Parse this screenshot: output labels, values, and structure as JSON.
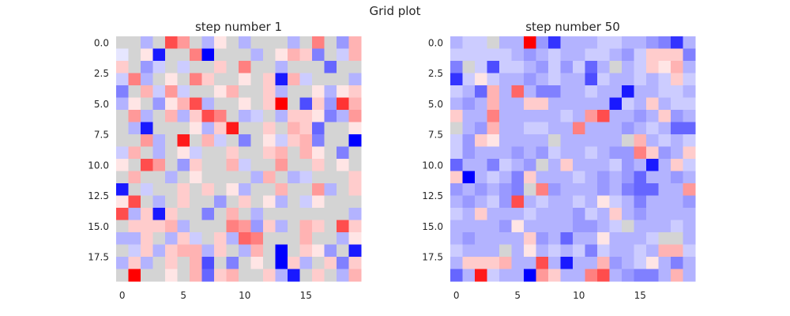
{
  "figure": {
    "title": "Grid plot"
  },
  "chart_data": [
    {
      "type": "heatmap",
      "title": "step number 1",
      "n_rows": 20,
      "n_cols": 20,
      "xticks": [
        0,
        5,
        10,
        15
      ],
      "yticks": [
        0.0,
        2.5,
        5.0,
        7.5,
        10.0,
        12.5,
        15.0,
        17.5
      ],
      "xtick_labels": [
        "0",
        "5",
        "10",
        "15"
      ],
      "ytick_labels": [
        "0.0",
        "2.5",
        "5.0",
        "7.5",
        "10.0",
        "12.5",
        "15.0",
        "17.5"
      ],
      "colormap": "bwr",
      "vmin": -1,
      "vmax": 1,
      "cells": [
        [
          0.0,
          0.0,
          -0.3,
          0.0,
          0.7,
          0.4,
          0.0,
          -0.3,
          0.1,
          0.0,
          -0.3,
          0.0,
          0.0,
          0.0,
          -0.3,
          0.0,
          0.5,
          0.0,
          -0.4,
          0.3
        ],
        [
          -0.1,
          0.0,
          0.1,
          -0.9,
          0.0,
          0.0,
          0.5,
          -1.0,
          0.0,
          0.0,
          0.0,
          -0.3,
          0.0,
          0.1,
          0.3,
          0.2,
          -0.5,
          0.0,
          -0.2,
          0.3
        ],
        [
          0.2,
          0.0,
          -0.4,
          -0.2,
          0.0,
          -0.2,
          0.0,
          0.0,
          0.2,
          0.0,
          0.5,
          0.0,
          0.0,
          -0.3,
          0.0,
          0.0,
          0.0,
          -0.6,
          0.0,
          0.0
        ],
        [
          -0.2,
          0.5,
          -0.3,
          0.0,
          0.1,
          0.0,
          0.5,
          0.2,
          0.0,
          0.0,
          0.1,
          0.0,
          0.2,
          -0.9,
          0.3,
          -0.2,
          0.0,
          0.0,
          0.0,
          -0.3
        ],
        [
          -0.5,
          0.0,
          0.3,
          -0.2,
          0.4,
          -0.2,
          0.0,
          0.0,
          0.1,
          0.3,
          0.0,
          0.0,
          0.2,
          -0.3,
          0.0,
          0.0,
          0.1,
          -0.3,
          0.1,
          0.2
        ],
        [
          -0.3,
          0.1,
          0.0,
          -0.4,
          0.1,
          0.3,
          0.7,
          -0.3,
          0.0,
          0.0,
          0.1,
          0.0,
          0.2,
          1.0,
          0.0,
          -0.7,
          0.2,
          -0.4,
          0.8,
          0.3
        ],
        [
          0.0,
          0.4,
          -0.3,
          0.0,
          0.3,
          -0.3,
          0.2,
          0.7,
          0.5,
          0.0,
          -0.3,
          -0.2,
          0.0,
          -0.3,
          0.2,
          0.2,
          0.1,
          -0.5,
          -0.3,
          0.4
        ],
        [
          0.0,
          -0.3,
          -0.9,
          0.0,
          0.0,
          0.0,
          0.1,
          -0.3,
          0.2,
          0.9,
          0.0,
          0.0,
          0.2,
          0.0,
          0.3,
          0.2,
          -0.6,
          0.0,
          0.0,
          0.1
        ],
        [
          0.0,
          0.0,
          0.4,
          -0.3,
          0.0,
          0.9,
          0.0,
          0.3,
          -0.2,
          0.0,
          -0.5,
          0.0,
          0.1,
          -0.2,
          0.2,
          0.3,
          -0.5,
          0.0,
          0.0,
          -1.0
        ],
        [
          -0.2,
          0.3,
          0.0,
          -0.3,
          0.0,
          0.1,
          -0.2,
          0.0,
          0.0,
          0.2,
          0.0,
          0.0,
          0.2,
          0.3,
          0.0,
          0.3,
          0.1,
          0.0,
          -0.5,
          0.0
        ],
        [
          0.1,
          0.0,
          0.7,
          0.4,
          0.0,
          -0.4,
          0.2,
          0.0,
          0.0,
          0.3,
          -0.2,
          0.0,
          0.0,
          0.4,
          0.0,
          0.0,
          0.2,
          0.0,
          0.1,
          0.0
        ],
        [
          0.0,
          0.3,
          0.0,
          0.0,
          -0.3,
          0.0,
          0.1,
          0.0,
          0.0,
          0.0,
          0.0,
          -0.3,
          0.3,
          0.0,
          -0.3,
          -0.2,
          0.0,
          0.0,
          0.0,
          0.2
        ],
        [
          -0.9,
          0.0,
          -0.2,
          0.0,
          0.0,
          0.2,
          0.0,
          0.2,
          0.0,
          0.1,
          -0.3,
          0.0,
          0.0,
          0.3,
          0.0,
          0.0,
          0.4,
          -0.3,
          0.0,
          0.2
        ],
        [
          0.1,
          0.7,
          0.0,
          -0.3,
          0.0,
          0.2,
          0.0,
          0.0,
          -0.4,
          0.0,
          0.2,
          0.0,
          0.1,
          -0.3,
          0.0,
          -0.2,
          0.1,
          0.0,
          0.0,
          0.0
        ],
        [
          0.7,
          -0.3,
          0.2,
          -0.9,
          0.2,
          0.0,
          0.0,
          -0.5,
          0.0,
          0.3,
          0.0,
          -0.3,
          0.0,
          0.0,
          0.0,
          0.0,
          0.0,
          0.0,
          0.0,
          -0.3
        ],
        [
          0.0,
          0.2,
          0.2,
          0.2,
          0.3,
          -0.3,
          0.0,
          0.0,
          0.0,
          0.5,
          0.4,
          -0.4,
          0.2,
          -0.3,
          0.0,
          0.3,
          0.2,
          0.0,
          0.7,
          0.2
        ],
        [
          -0.3,
          -0.3,
          0.2,
          0.0,
          -0.3,
          0.2,
          -0.2,
          0.0,
          0.2,
          -0.3,
          0.6,
          0.5,
          0.0,
          0.0,
          0.0,
          0.3,
          0.0,
          0.0,
          -0.3,
          0.1
        ],
        [
          0.0,
          -0.2,
          0.2,
          -0.3,
          0.2,
          0.3,
          0.3,
          -0.3,
          0.2,
          0.0,
          -0.3,
          0.3,
          0.0,
          -1.0,
          0.0,
          0.2,
          0.1,
          -0.4,
          0.0,
          -0.9
        ],
        [
          -0.3,
          0.2,
          -0.3,
          0.0,
          0.2,
          0.0,
          0.3,
          -0.7,
          0.0,
          -0.5,
          0.0,
          0.1,
          0.0,
          -1.0,
          0.2,
          -0.3,
          0.0,
          0.2,
          -0.5,
          0.2
        ],
        [
          0.0,
          1.0,
          0.0,
          0.0,
          0.1,
          0.0,
          0.3,
          -0.6,
          0.2,
          0.3,
          0.0,
          0.0,
          0.2,
          -0.3,
          -0.9,
          0.0,
          0.2,
          0.0,
          -0.3,
          0.3
        ]
      ]
    },
    {
      "type": "heatmap",
      "title": "step number 50",
      "n_rows": 20,
      "n_cols": 20,
      "xticks": [
        0,
        5,
        10,
        15
      ],
      "yticks": [
        0.0,
        2.5,
        5.0,
        7.5,
        10.0,
        12.5,
        15.0,
        17.5
      ],
      "xtick_labels": [
        "0",
        "5",
        "10",
        "15"
      ],
      "ytick_labels": [
        "0.0",
        "2.5",
        "5.0",
        "7.5",
        "10.0",
        "12.5",
        "15.0",
        "17.5"
      ],
      "colormap": "bwr",
      "vmin": -1,
      "vmax": 1,
      "cells": [
        [
          -0.3,
          -0.2,
          -0.2,
          0.0,
          -0.3,
          -0.3,
          1.0,
          -0.4,
          -0.8,
          -0.3,
          -0.3,
          -0.3,
          -0.2,
          -0.2,
          -0.3,
          -0.3,
          -0.4,
          -0.5,
          -0.8,
          -0.3
        ],
        [
          -0.2,
          -0.2,
          -0.2,
          -0.2,
          -0.2,
          -0.3,
          -0.4,
          -0.3,
          -0.2,
          -0.3,
          -0.3,
          -0.2,
          -0.2,
          -0.3,
          -0.4,
          -0.2,
          0.2,
          0.2,
          0.2,
          -0.5
        ],
        [
          -0.5,
          0.0,
          -0.2,
          -0.7,
          -0.2,
          -0.2,
          -0.3,
          -0.4,
          -0.2,
          -0.4,
          -0.2,
          -0.6,
          -0.3,
          0.0,
          -0.3,
          -0.2,
          0.2,
          0.1,
          0.3,
          -0.3
        ],
        [
          -0.8,
          -0.2,
          0.1,
          -0.2,
          -0.3,
          -0.3,
          -0.4,
          -0.3,
          -0.2,
          -0.3,
          -0.3,
          -0.7,
          -0.2,
          -0.3,
          -0.3,
          -0.2,
          -0.3,
          -0.2,
          0.2,
          -0.2
        ],
        [
          -0.2,
          -0.3,
          -0.6,
          0.3,
          -0.3,
          0.6,
          -0.3,
          -0.5,
          -0.5,
          -0.3,
          -0.3,
          -0.2,
          -0.3,
          -0.3,
          -0.9,
          -0.3,
          -0.3,
          -0.2,
          -0.2,
          -0.3
        ],
        [
          -0.3,
          -0.4,
          -0.3,
          0.3,
          -0.3,
          -0.3,
          0.2,
          0.2,
          -0.3,
          -0.3,
          -0.3,
          -0.3,
          -0.3,
          -0.9,
          -0.2,
          -0.3,
          0.2,
          -0.3,
          -0.2,
          -0.2
        ],
        [
          0.2,
          -0.3,
          -0.3,
          0.5,
          -0.3,
          -0.3,
          -0.3,
          -0.3,
          -0.3,
          -0.2,
          -0.3,
          0.4,
          0.7,
          -0.3,
          -0.3,
          -0.4,
          -0.3,
          0.2,
          -0.4,
          -0.3
        ],
        [
          0.0,
          -0.3,
          -0.4,
          0.3,
          -0.3,
          -0.3,
          -0.2,
          -0.2,
          -0.3,
          -0.3,
          0.5,
          -0.3,
          -0.3,
          -0.3,
          -0.4,
          -0.3,
          -0.2,
          -0.3,
          -0.6,
          -0.6
        ],
        [
          -0.2,
          -0.4,
          0.2,
          0.1,
          -0.3,
          -0.3,
          -0.3,
          -0.3,
          0.0,
          -0.3,
          -0.3,
          -0.3,
          -0.3,
          -0.3,
          0.0,
          0.3,
          -0.3,
          -0.2,
          -0.3,
          -0.2
        ],
        [
          -0.2,
          -0.4,
          -0.3,
          -0.3,
          -0.3,
          -0.4,
          -0.3,
          -0.4,
          -0.2,
          -0.3,
          -0.3,
          -0.2,
          -0.3,
          -0.4,
          -0.4,
          0.5,
          0.2,
          -0.4,
          -0.3,
          0.2
        ],
        [
          -0.6,
          -0.3,
          -0.3,
          -0.5,
          -0.2,
          -0.3,
          -0.4,
          0.0,
          -0.3,
          0.2,
          -0.3,
          -0.3,
          -0.3,
          -0.2,
          -0.4,
          -0.3,
          -0.9,
          -0.3,
          0.2,
          -0.2
        ],
        [
          0.2,
          -1.0,
          -0.3,
          -0.2,
          -0.3,
          -0.5,
          0.2,
          -0.3,
          -0.3,
          -0.3,
          -0.2,
          -0.3,
          -0.4,
          -0.3,
          -0.4,
          -0.6,
          -0.3,
          -0.3,
          -0.4,
          -0.3
        ],
        [
          -0.4,
          -0.3,
          -0.4,
          -0.3,
          -0.4,
          -0.5,
          0.0,
          0.5,
          -0.4,
          -0.3,
          -0.3,
          -0.3,
          -0.4,
          -0.3,
          -0.5,
          -0.6,
          -0.6,
          -0.3,
          -0.3,
          0.4
        ],
        [
          -0.3,
          -0.4,
          -0.3,
          -0.2,
          -0.4,
          0.7,
          -0.3,
          -0.2,
          -0.3,
          -0.3,
          -0.2,
          -0.3,
          0.1,
          -0.2,
          -0.3,
          -0.5,
          -0.3,
          -0.3,
          -0.3,
          -0.4
        ],
        [
          -0.2,
          -0.3,
          0.2,
          -0.3,
          -0.3,
          -0.3,
          -0.2,
          -0.3,
          -0.3,
          -0.3,
          -0.4,
          -0.2,
          -0.3,
          0.2,
          -0.3,
          -0.4,
          -0.3,
          -0.3,
          -0.3,
          -0.3
        ],
        [
          -0.3,
          -0.3,
          -0.3,
          -0.3,
          -0.4,
          0.1,
          -0.3,
          -0.3,
          -0.3,
          -0.3,
          -0.4,
          -0.4,
          -0.3,
          -0.2,
          0.0,
          -0.3,
          -0.3,
          -0.3,
          -0.2,
          -0.3
        ],
        [
          -0.3,
          -0.4,
          -0.3,
          -0.3,
          -0.3,
          -0.3,
          0.2,
          -0.4,
          -0.3,
          -0.6,
          -0.3,
          -0.3,
          0.1,
          -0.3,
          -0.3,
          -0.3,
          -0.2,
          0.0,
          0.0,
          -0.3
        ],
        [
          -0.2,
          -0.3,
          -0.3,
          -0.3,
          0.0,
          -0.3,
          0.1,
          -0.3,
          -0.2,
          -0.3,
          -0.2,
          -0.5,
          -0.2,
          -0.3,
          -0.3,
          -0.2,
          -0.3,
          0.3,
          0.3,
          -0.2
        ],
        [
          -0.3,
          0.2,
          0.2,
          0.2,
          0.3,
          -0.3,
          -0.3,
          0.7,
          -0.3,
          -0.9,
          -0.3,
          -0.3,
          0.3,
          -0.4,
          -0.3,
          -0.2,
          0.1,
          -0.3,
          -0.5,
          -0.3
        ],
        [
          -0.6,
          -0.3,
          0.9,
          -0.2,
          -0.3,
          -0.3,
          -1.0,
          0.4,
          0.2,
          -0.3,
          -0.3,
          0.5,
          0.7,
          -0.3,
          -0.4,
          -0.5,
          -0.5,
          -0.3,
          0.3,
          -0.3
        ]
      ]
    }
  ]
}
